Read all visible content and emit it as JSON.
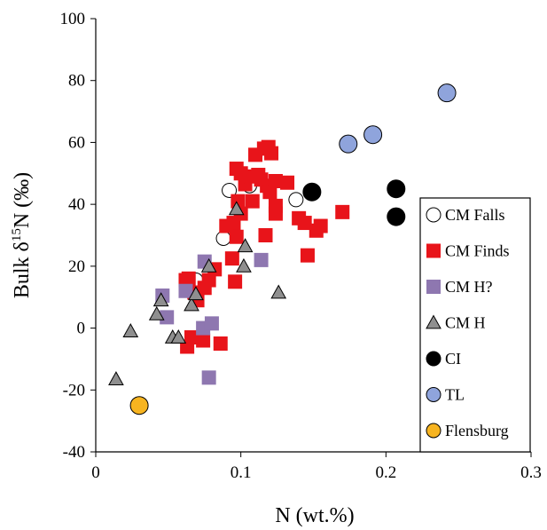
{
  "chart_data": {
    "type": "scatter",
    "xlabel": "N (wt.%)",
    "ylabel_parts": [
      "Bulk δ",
      "15",
      "N (‰)"
    ],
    "xlim": [
      0,
      0.3
    ],
    "ylim": [
      -40,
      100
    ],
    "xticks": [
      0,
      0.1,
      0.2,
      0.3
    ],
    "xtick_labels": [
      "0",
      "0.1",
      "0.2",
      "0.3"
    ],
    "yticks": [
      -40,
      -20,
      0,
      20,
      40,
      60,
      80,
      100
    ],
    "ytick_labels": [
      "-40",
      "-20",
      "0",
      "20",
      "40",
      "60",
      "80",
      "100"
    ],
    "grid": false,
    "legend_position": "right",
    "series": [
      {
        "name": "CM Falls",
        "marker": "circle",
        "fill": "#ffffff",
        "stroke": "#000000",
        "points": [
          [
            0.092,
            44.5
          ],
          [
            0.106,
            46
          ],
          [
            0.138,
            41.5
          ],
          [
            0.088,
            29
          ],
          [
            0.069,
            15.5
          ]
        ]
      },
      {
        "name": "CM Finds",
        "marker": "square",
        "fill": "#e8141a",
        "stroke": "#e8141a",
        "points": [
          [
            0.097,
            51.5
          ],
          [
            0.1,
            50
          ],
          [
            0.103,
            46.5
          ],
          [
            0.107,
            49
          ],
          [
            0.11,
            56
          ],
          [
            0.112,
            49.5
          ],
          [
            0.116,
            58
          ],
          [
            0.119,
            58.5
          ],
          [
            0.121,
            56.5
          ],
          [
            0.114,
            48
          ],
          [
            0.118,
            46
          ],
          [
            0.12,
            44
          ],
          [
            0.124,
            47.5
          ],
          [
            0.132,
            47
          ],
          [
            0.108,
            41
          ],
          [
            0.098,
            41
          ],
          [
            0.1,
            37
          ],
          [
            0.095,
            34
          ],
          [
            0.09,
            33
          ],
          [
            0.097,
            29.5
          ],
          [
            0.094,
            22.5
          ],
          [
            0.117,
            30
          ],
          [
            0.124,
            39.5
          ],
          [
            0.124,
            37
          ],
          [
            0.14,
            35.5
          ],
          [
            0.144,
            34
          ],
          [
            0.152,
            31.5
          ],
          [
            0.155,
            33
          ],
          [
            0.17,
            37.5
          ],
          [
            0.146,
            23.5
          ],
          [
            0.096,
            15
          ],
          [
            0.082,
            19
          ],
          [
            0.078,
            15.5
          ],
          [
            0.075,
            13
          ],
          [
            0.064,
            16
          ],
          [
            0.062,
            15.5
          ],
          [
            0.068,
            11.5
          ],
          [
            0.07,
            9
          ],
          [
            0.066,
            -3
          ],
          [
            0.063,
            -6
          ],
          [
            0.074,
            -4
          ],
          [
            0.086,
            -5
          ]
        ]
      },
      {
        "name": "CM H?",
        "marker": "square",
        "fill": "#8e77b0",
        "stroke": "#8e77b0",
        "points": [
          [
            0.046,
            10.5
          ],
          [
            0.062,
            12
          ],
          [
            0.075,
            21.5
          ],
          [
            0.114,
            22
          ],
          [
            0.049,
            3.5
          ],
          [
            0.074,
            0
          ],
          [
            0.08,
            1.5
          ],
          [
            0.078,
            -16
          ]
        ]
      },
      {
        "name": "CM H",
        "marker": "triangle",
        "fill": "#8f8f8f",
        "stroke": "#000000",
        "points": [
          [
            0.097,
            38.5
          ],
          [
            0.078,
            20
          ],
          [
            0.102,
            20
          ],
          [
            0.103,
            26.5
          ],
          [
            0.126,
            11.5
          ],
          [
            0.066,
            7.5
          ],
          [
            0.069,
            11
          ],
          [
            0.045,
            9
          ],
          [
            0.042,
            4.5
          ],
          [
            0.053,
            -3
          ],
          [
            0.057,
            -3
          ],
          [
            0.024,
            -1
          ],
          [
            0.014,
            -16.5
          ]
        ]
      },
      {
        "name": "CI",
        "marker": "circle",
        "fill": "#000000",
        "stroke": "#000000",
        "points": [
          [
            0.149,
            44
          ],
          [
            0.207,
            45
          ],
          [
            0.207,
            36
          ]
        ]
      },
      {
        "name": "TL",
        "marker": "circle",
        "fill": "#8fa4dc",
        "stroke": "#000000",
        "points": [
          [
            0.174,
            59.5
          ],
          [
            0.191,
            62.5
          ],
          [
            0.242,
            76
          ]
        ]
      },
      {
        "name": "Flensburg",
        "marker": "circle",
        "fill": "#f7b420",
        "stroke": "#000000",
        "points": [
          [
            0.03,
            -25
          ]
        ]
      }
    ]
  }
}
